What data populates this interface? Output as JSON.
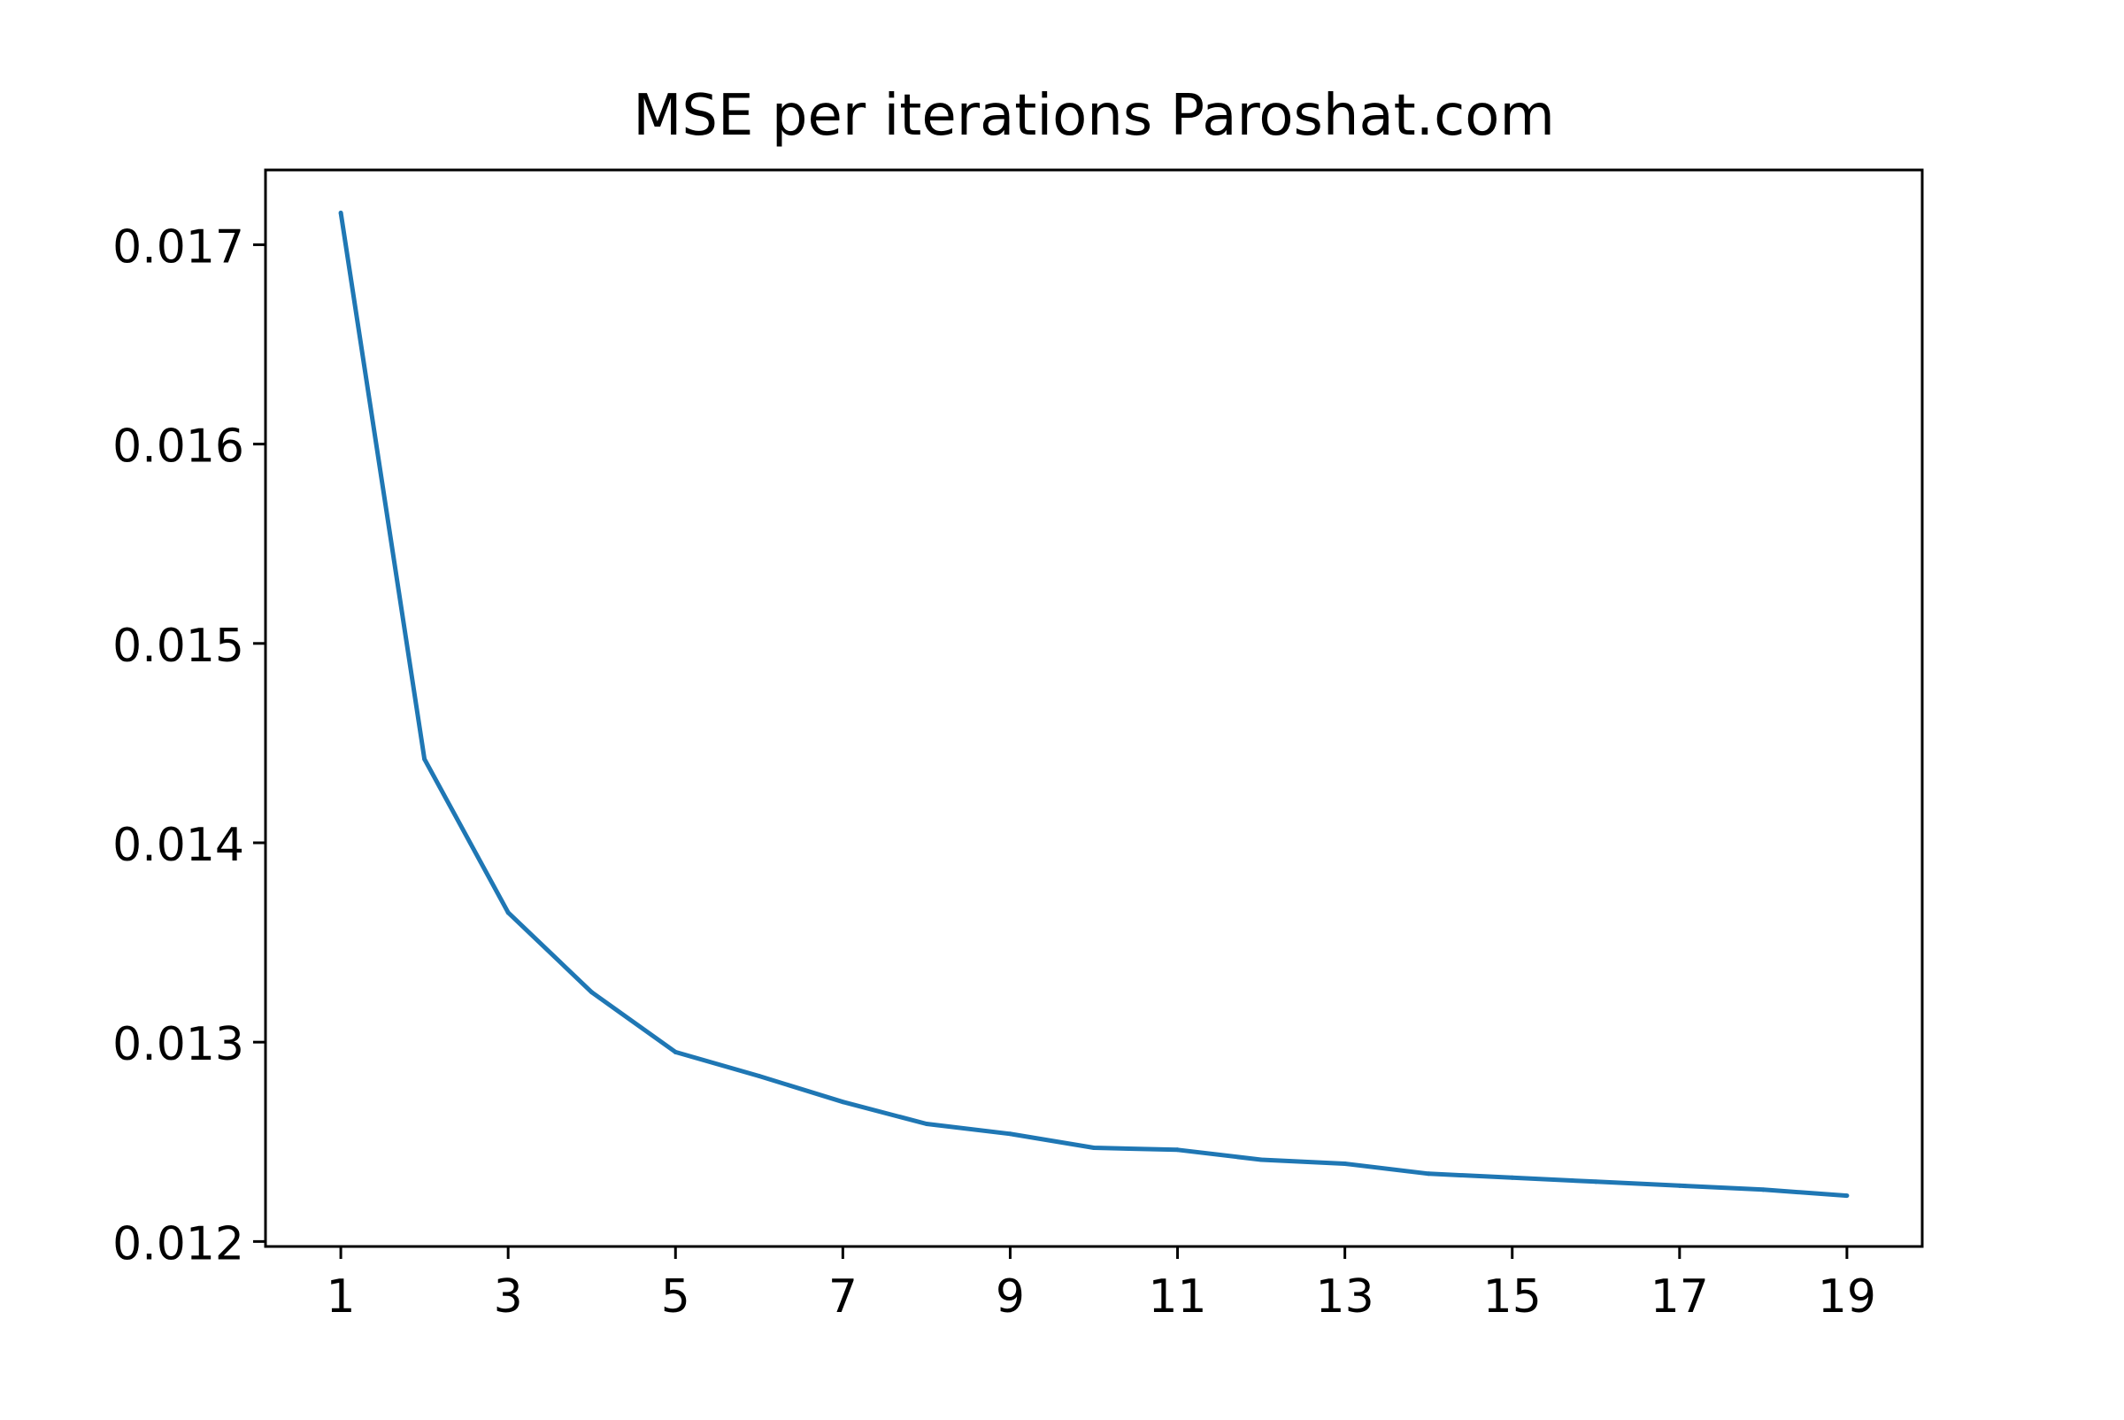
{
  "chart_data": {
    "type": "line",
    "title": "MSE per iterations Paroshat.com",
    "xlabel": "",
    "ylabel": "",
    "x": [
      1,
      2,
      3,
      4,
      5,
      6,
      7,
      8,
      9,
      10,
      11,
      12,
      13,
      14,
      15,
      16,
      17,
      18,
      19
    ],
    "series": [
      {
        "values": [
          0.01716,
          0.01442,
          0.01365,
          0.01325,
          0.01295,
          0.01283,
          0.0127,
          0.01259,
          0.01254,
          0.01247,
          0.01246,
          0.01241,
          0.01239,
          0.01234,
          0.01232,
          0.0123,
          0.01228,
          0.01226,
          0.01223
        ],
        "color": "#1f77b4"
      }
    ],
    "xticks": [
      "1",
      "3",
      "5",
      "7",
      "9",
      "11",
      "13",
      "15",
      "17",
      "19"
    ],
    "yticks": [
      "0.012",
      "0.013",
      "0.014",
      "0.015",
      "0.016",
      "0.017"
    ],
    "xlim": [
      0.1,
      19.9
    ],
    "ylim": [
      0.011975,
      0.017375
    ],
    "grid": false,
    "legend": "none"
  }
}
